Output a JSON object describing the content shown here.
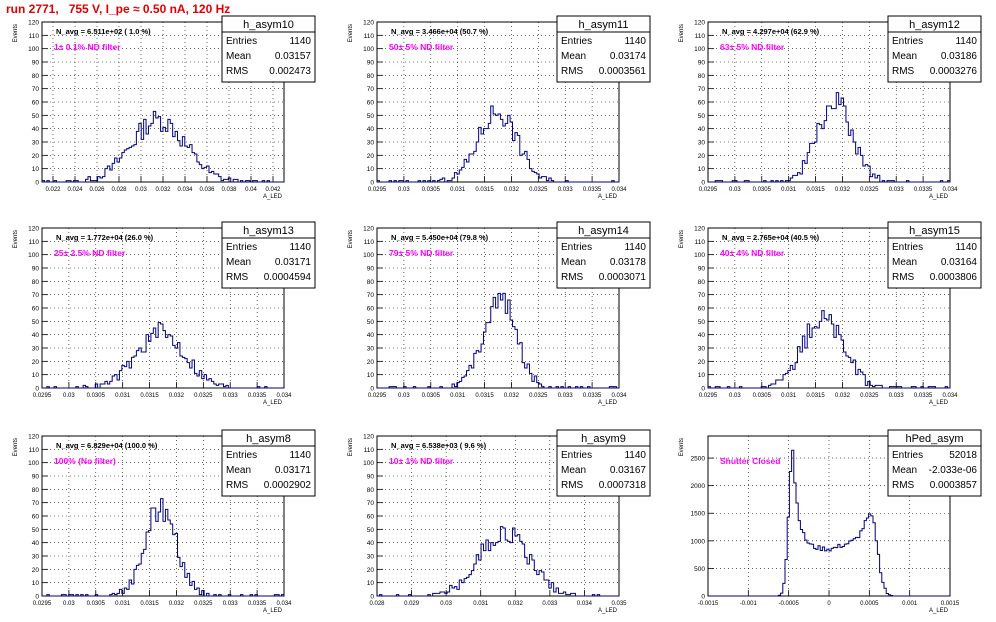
{
  "page": {
    "title": "run 2771,   755 V, I_pe ≈ 0.50 nA, 120 Hz",
    "colors": {
      "line": "#000080",
      "annotation": "#ff00ff",
      "title": "#e00000",
      "frame": "#000000",
      "grid": "#000000"
    }
  },
  "chart_data": [
    {
      "type": "histogram",
      "name": "h_asym10",
      "annotation": "N_avg = 6.511e+02 ( 1.0 %)",
      "filter": "1± 0.1% ND filter",
      "stats": {
        "entries_label": "Entries",
        "entries": "1140",
        "mean_label": "Mean",
        "mean": "0.03157",
        "rms_label": "RMS",
        "rms": "0.002473"
      },
      "ylabel": "Events",
      "xlabel": "A_LED",
      "xlim": [
        0.021,
        0.043
      ],
      "ylim": [
        0,
        120
      ],
      "xticks": [
        "0.022",
        "0.024",
        "0.026",
        "0.028",
        "0.03",
        "0.032",
        "0.034",
        "0.036",
        "0.038",
        "0.04",
        "0.042"
      ],
      "yticks": [
        "0",
        "10",
        "20",
        "30",
        "40",
        "50",
        "60",
        "70",
        "80",
        "90",
        "100",
        "110",
        "120"
      ],
      "mean": 0.03157,
      "sigma": 0.002473,
      "peak": 57
    },
    {
      "type": "histogram",
      "name": "h_asym11",
      "annotation": "N_avg = 3.466e+04 (50.7 %)",
      "filter": "50± 5% ND filter",
      "stats": {
        "entries_label": "Entries",
        "entries": "1140",
        "mean_label": "Mean",
        "mean": "0.03174",
        "rms_label": "RMS",
        "rms": "0.0003561"
      },
      "ylabel": "Events",
      "xlabel": "A_LED",
      "xlim": [
        0.0295,
        0.034
      ],
      "ylim": [
        0,
        120
      ],
      "xticks": [
        "0.0295",
        "0.03",
        "0.0305",
        "0.031",
        "0.0315",
        "0.032",
        "0.0325",
        "0.033",
        "0.0335",
        "0.034"
      ],
      "yticks": [
        "0",
        "10",
        "20",
        "30",
        "40",
        "50",
        "60",
        "70",
        "80",
        "90",
        "100",
        "110",
        "120"
      ],
      "mean": 0.03174,
      "sigma": 0.0003561,
      "peak": 65
    },
    {
      "type": "histogram",
      "name": "h_asym12",
      "annotation": "N_avg = 4.297e+04 (62.9 %)",
      "filter": "63± 5% ND filter",
      "stats": {
        "entries_label": "Entries",
        "entries": "1140",
        "mean_label": "Mean",
        "mean": "0.03186",
        "rms_label": "RMS",
        "rms": "0.0003276"
      },
      "ylabel": "Events",
      "xlabel": "A_LED",
      "xlim": [
        0.0295,
        0.034
      ],
      "ylim": [
        0,
        120
      ],
      "xticks": [
        "0.0295",
        "0.03",
        "0.0305",
        "0.031",
        "0.0315",
        "0.032",
        "0.0325",
        "0.033",
        "0.0335",
        "0.034"
      ],
      "yticks": [
        "0",
        "10",
        "20",
        "30",
        "40",
        "50",
        "60",
        "70",
        "80",
        "90",
        "100",
        "110",
        "120"
      ],
      "mean": 0.03186,
      "sigma": 0.0003276,
      "peak": 72
    },
    {
      "type": "histogram",
      "name": "h_asym13",
      "annotation": "N_avg = 1.772e+04 (26.0 %)",
      "filter": "25± 2.5% ND filter",
      "stats": {
        "entries_label": "Entries",
        "entries": "1140",
        "mean_label": "Mean",
        "mean": "0.03171",
        "rms_label": "RMS",
        "rms": "0.0004594"
      },
      "ylabel": "Events",
      "xlabel": "A_LED",
      "xlim": [
        0.0295,
        0.034
      ],
      "ylim": [
        0,
        120
      ],
      "xticks": [
        "0.0295",
        "0.03",
        "0.0305",
        "0.031",
        "0.0315",
        "0.032",
        "0.0325",
        "0.033",
        "0.0335",
        "0.034"
      ],
      "yticks": [
        "0",
        "10",
        "20",
        "30",
        "40",
        "50",
        "60",
        "70",
        "80",
        "90",
        "100",
        "110",
        "120"
      ],
      "mean": 0.03171,
      "sigma": 0.0004594,
      "peak": 50
    },
    {
      "type": "histogram",
      "name": "h_asym14",
      "annotation": "N_avg = 5.450e+04 (79.8 %)",
      "filter": "79± 5% ND filter",
      "stats": {
        "entries_label": "Entries",
        "entries": "1140",
        "mean_label": "Mean",
        "mean": "0.03178",
        "rms_label": "RMS",
        "rms": "0.0003071"
      },
      "ylabel": "Events",
      "xlabel": "A_LED",
      "xlim": [
        0.0295,
        0.034
      ],
      "ylim": [
        0,
        120
      ],
      "xticks": [
        "0.0295",
        "0.03",
        "0.0305",
        "0.031",
        "0.0315",
        "0.032",
        "0.0325",
        "0.033",
        "0.0335",
        "0.034"
      ],
      "yticks": [
        "0",
        "10",
        "20",
        "30",
        "40",
        "50",
        "60",
        "70",
        "80",
        "90",
        "100",
        "110",
        "120"
      ],
      "mean": 0.03178,
      "sigma": 0.0003071,
      "peak": 81
    },
    {
      "type": "histogram",
      "name": "h_asym15",
      "annotation": "N_avg = 2.765e+04 (40.5 %)",
      "filter": "40± 4% ND filter",
      "stats": {
        "entries_label": "Entries",
        "entries": "1140",
        "mean_label": "Mean",
        "mean": "0.03164",
        "rms_label": "RMS",
        "rms": "0.0003806"
      },
      "ylabel": "Events",
      "xlabel": "A_LED",
      "xlim": [
        0.0295,
        0.034
      ],
      "ylim": [
        0,
        120
      ],
      "xticks": [
        "0.0295",
        "0.03",
        "0.0305",
        "0.031",
        "0.0315",
        "0.032",
        "0.0325",
        "0.033",
        "0.0335",
        "0.034"
      ],
      "yticks": [
        "0",
        "10",
        "20",
        "30",
        "40",
        "50",
        "60",
        "70",
        "80",
        "90",
        "100",
        "110",
        "120"
      ],
      "mean": 0.03164,
      "sigma": 0.0003806,
      "peak": 63
    },
    {
      "type": "histogram",
      "name": "h_asym8",
      "annotation": "N_avg = 6.829e+04 (100.0 %)",
      "filter": "100% (No filter)",
      "stats": {
        "entries_label": "Entries",
        "entries": "1140",
        "mean_label": "Mean",
        "mean": "0.03171",
        "rms_label": "RMS",
        "rms": "0.0002902"
      },
      "ylabel": "Events",
      "xlabel": "A_LED",
      "xlim": [
        0.0295,
        0.034
      ],
      "ylim": [
        0,
        120
      ],
      "xticks": [
        "0.0295",
        "0.03",
        "0.0305",
        "0.031",
        "0.0315",
        "0.032",
        "0.0325",
        "0.033",
        "0.0335",
        "0.034"
      ],
      "yticks": [
        "0",
        "10",
        "20",
        "30",
        "40",
        "50",
        "60",
        "70",
        "80",
        "90",
        "100",
        "110",
        "120"
      ],
      "mean": 0.03171,
      "sigma": 0.0002902,
      "peak": 81
    },
    {
      "type": "histogram",
      "name": "h_asym9",
      "annotation": "N_avg = 6.538e+03 ( 9.6 %)",
      "filter": "10± 1% ND filter",
      "stats": {
        "entries_label": "Entries",
        "entries": "1140",
        "mean_label": "Mean",
        "mean": "0.03167",
        "rms_label": "RMS",
        "rms": "0.0007318"
      },
      "ylabel": "Events",
      "xlabel": "A_LED",
      "xlim": [
        0.028,
        0.035
      ],
      "ylim": [
        0,
        120
      ],
      "xticks": [
        "0.028",
        "0.029",
        "0.03",
        "0.031",
        "0.032",
        "0.033",
        "0.034",
        "0.035"
      ],
      "yticks": [
        "0",
        "10",
        "20",
        "30",
        "40",
        "50",
        "60",
        "70",
        "80",
        "90",
        "100",
        "110",
        "120"
      ],
      "mean": 0.03167,
      "sigma": 0.0007318,
      "peak": 58
    },
    {
      "type": "histogram",
      "name": "hPed_asym",
      "annotation": "",
      "filter": "Shutter Closed",
      "stats": {
        "entries_label": "Entries",
        "entries": "52018",
        "mean_label": "Mean",
        "mean": "-2.033e-06",
        "rms_label": "RMS",
        "rms": "0.0003857"
      },
      "ylabel": "Events",
      "xlabel": "A_LED",
      "xlim": [
        -0.0015,
        0.0015
      ],
      "ylim": [
        0,
        2900
      ],
      "xticks": [
        "-0.0015",
        "-0.001",
        "-0.0005",
        "0",
        "0.0005",
        "0.001",
        "0.0015"
      ],
      "yticks": [
        "0",
        "500",
        "1000",
        "1500",
        "2000",
        "2500"
      ],
      "shape": "bimodal",
      "peaks": [
        {
          "x": -0.00045,
          "y": 2650
        },
        {
          "x": 0.00052,
          "y": 1450
        }
      ],
      "valley": 850
    }
  ]
}
